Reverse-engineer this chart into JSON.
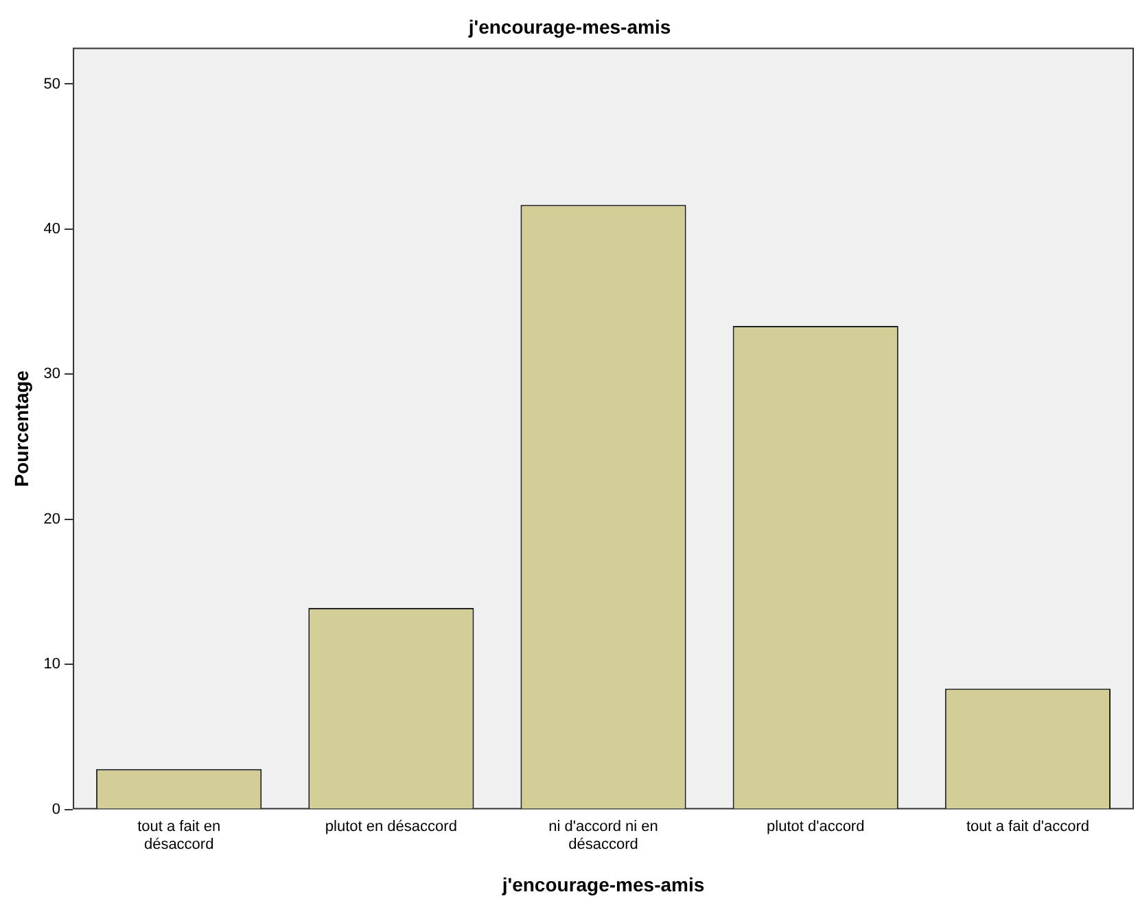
{
  "chart_data": {
    "type": "bar",
    "title": "j'encourage-mes-amis",
    "xlabel": "j'encourage-mes-amis",
    "ylabel": "Pourcentage",
    "categories": [
      "tout a fait en désaccord",
      "plutot en désaccord",
      "ni d'accord ni en désaccord",
      "plutot d'accord",
      "tout a fait d'accord"
    ],
    "values": [
      2.78,
      13.89,
      41.67,
      33.33,
      8.33
    ],
    "color": "#d3ce97",
    "ylim": [
      0,
      52.5
    ],
    "yticks": [
      0,
      10,
      20,
      30,
      40,
      50
    ],
    "grid": false,
    "legend": false
  }
}
